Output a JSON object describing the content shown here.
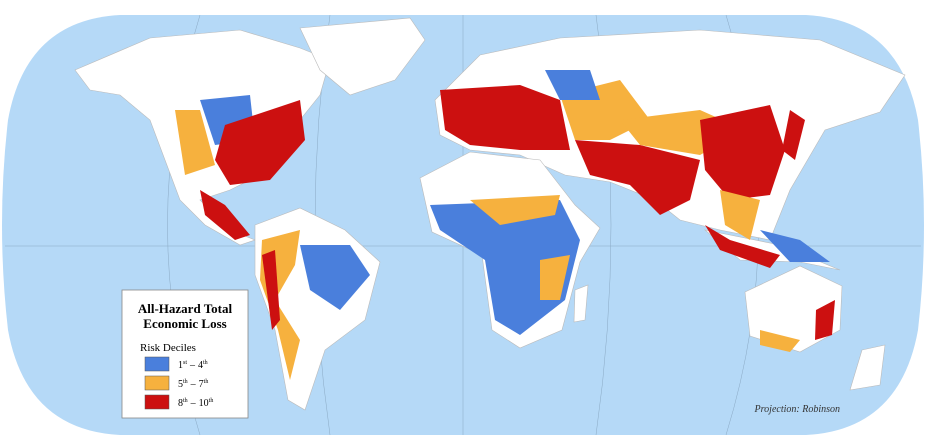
{
  "legend": {
    "title": [
      "All-Hazard Total",
      "Economic Loss"
    ],
    "subtitle": "Risk Deciles",
    "items": [
      {
        "low": "1",
        "low_sup": "st",
        "dash": "–",
        "high": "4",
        "high_sup": "th",
        "color": "#4a7fdc"
      },
      {
        "low": "5",
        "low_sup": "th",
        "dash": "–",
        "high": "7",
        "high_sup": "th",
        "color": "#f6b13e"
      },
      {
        "low": "8",
        "low_sup": "th",
        "dash": "–",
        "high": "10",
        "high_sup": "th",
        "color": "#cc1010"
      }
    ]
  },
  "projection": "Projection: Robinson"
}
